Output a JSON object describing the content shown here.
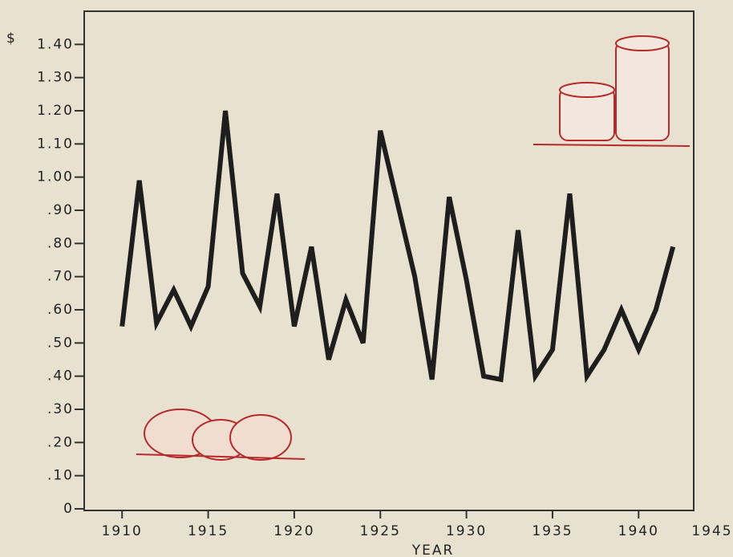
{
  "chart_data": {
    "type": "line",
    "y_unit_label": "$",
    "xlabel": "YEAR",
    "x": [
      1910,
      1911,
      1912,
      1913,
      1914,
      1915,
      1916,
      1917,
      1918,
      1919,
      1920,
      1921,
      1922,
      1923,
      1924,
      1925,
      1926,
      1927,
      1928,
      1929,
      1930,
      1931,
      1932,
      1933,
      1934,
      1935,
      1936,
      1937,
      1938,
      1939,
      1940,
      1941,
      1942
    ],
    "series": [
      {
        "color": "#1e1e1e",
        "values": [
          0.55,
          0.99,
          0.56,
          0.66,
          0.55,
          0.67,
          1.2,
          0.71,
          0.61,
          0.95,
          0.55,
          0.79,
          0.45,
          0.63,
          0.5,
          1.14,
          0.92,
          0.7,
          0.39,
          0.94,
          0.69,
          0.4,
          0.39,
          0.84,
          0.4,
          0.48,
          0.95,
          0.4,
          0.48,
          0.6,
          0.48,
          0.6,
          0.79
        ]
      }
    ],
    "xlim": [
      1907.8,
      1943.2
    ],
    "xticks": [
      1910,
      1915,
      1920,
      1925,
      1930,
      1935,
      1940,
      1945
    ],
    "ylim": [
      0,
      1.5
    ],
    "yticks": [
      0,
      {
        "value": 0.1,
        "label": ".10"
      },
      {
        "value": 0.2,
        "label": ".20"
      },
      {
        "value": 0.3,
        "label": ".30"
      },
      {
        "value": 0.4,
        "label": ".40"
      },
      {
        "value": 0.5,
        "label": ".50"
      },
      {
        "value": 0.6,
        "label": ".60"
      },
      {
        "value": 0.7,
        "label": ".70"
      },
      {
        "value": 0.8,
        "label": ".80"
      },
      {
        "value": 0.9,
        "label": ".90"
      },
      {
        "value": 1.0,
        "label": "1.00"
      },
      {
        "value": 1.1,
        "label": "1.10"
      },
      {
        "value": 1.2,
        "label": "1.20"
      },
      {
        "value": 1.3,
        "label": "1.30"
      },
      {
        "value": 1.4,
        "label": "1.40"
      }
    ],
    "grid": false
  }
}
